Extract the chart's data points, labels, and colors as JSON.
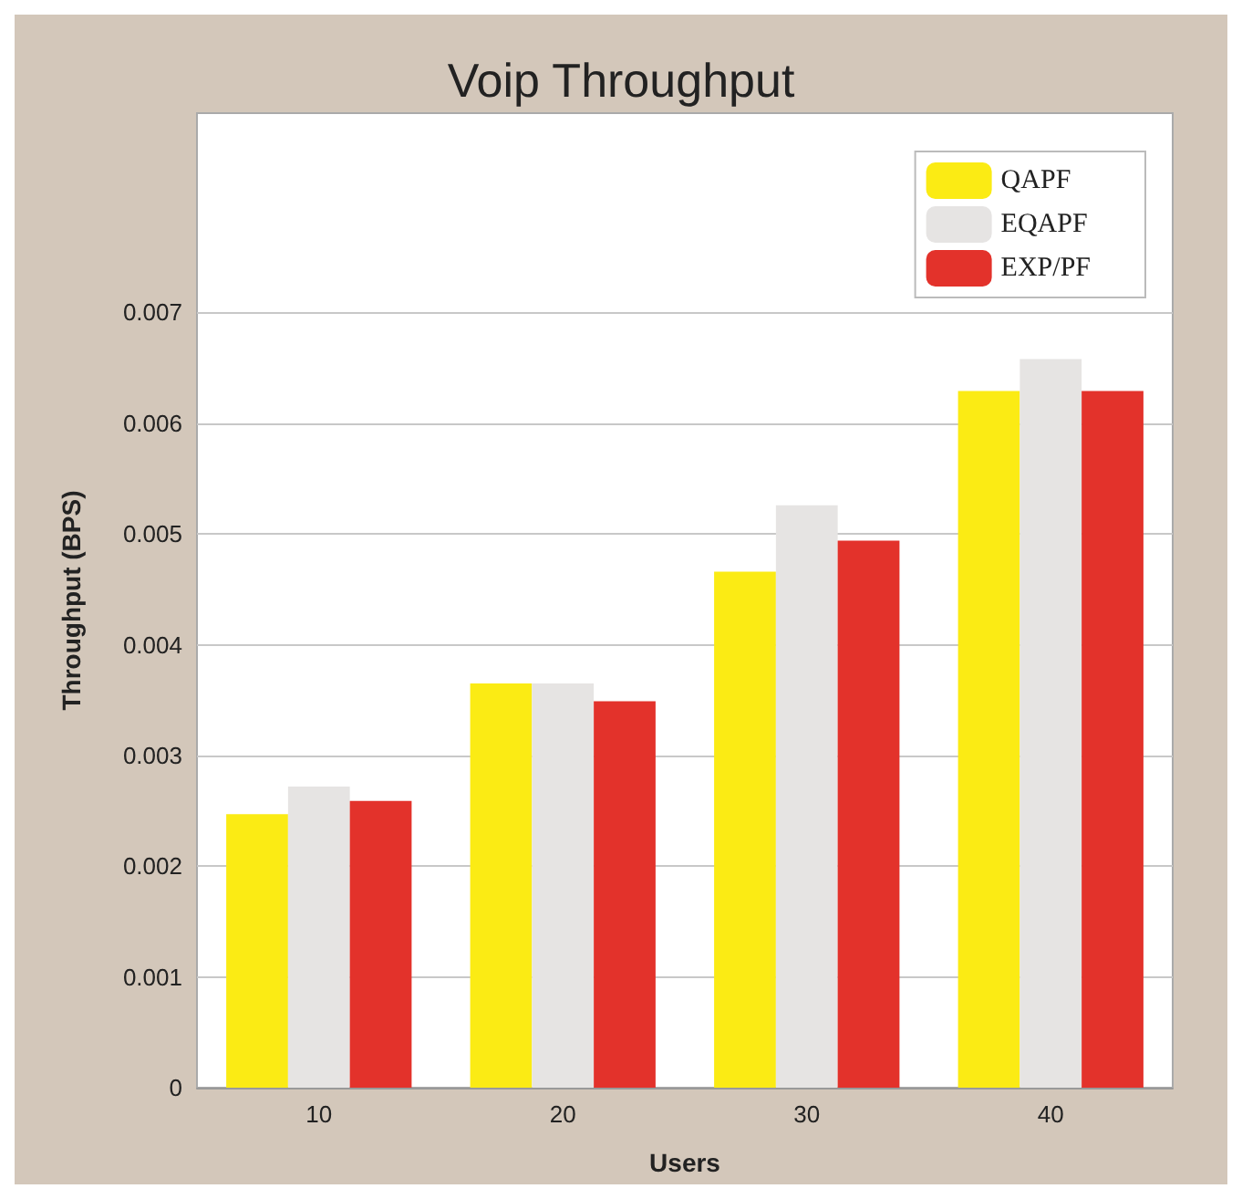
{
  "chart_data": {
    "type": "bar",
    "title": "Voip Throughput",
    "xlabel": "Users",
    "ylabel": "Throughput (BPS)",
    "categories": [
      "10",
      "20",
      "30",
      "40"
    ],
    "series": [
      {
        "name": "QAPF",
        "color": "#fbeb14",
        "values": [
          0.00247,
          0.00365,
          0.00466,
          0.00629
        ]
      },
      {
        "name": "EQAPF",
        "color": "#e6e4e3",
        "values": [
          0.00272,
          0.00365,
          0.00526,
          0.00658
        ]
      },
      {
        "name": "EXP/PF",
        "color": "#e3322b",
        "values": [
          0.00259,
          0.00349,
          0.00494,
          0.00629
        ]
      }
    ],
    "ylim": [
      0,
      0.0088
    ],
    "yticks": [
      0,
      0.001,
      0.002,
      0.003,
      0.004,
      0.005,
      0.006,
      0.007
    ],
    "grid": "y",
    "legend": "top right"
  }
}
